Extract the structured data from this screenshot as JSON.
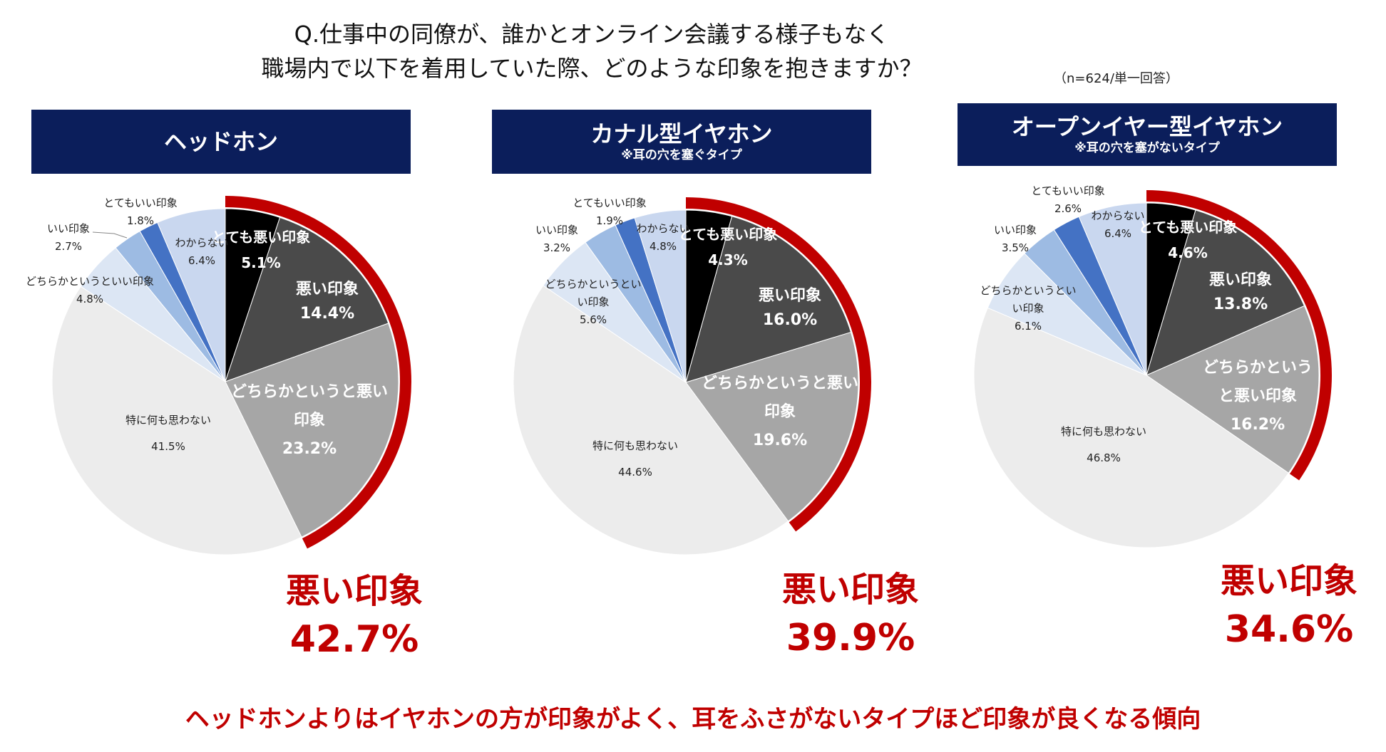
{
  "title": {
    "line1": "Q.仕事中の同僚が、誰かとオンライン会議する様子もなく",
    "line2": "職場内で以下を着用していた際、どのような印象を抱きますか？"
  },
  "note": "（n=624/単一回答）",
  "colors": {
    "header_bg": "#0b1e5b",
    "accent_red": "#c00000",
    "very_bad": "#000000",
    "bad": "#4a4a4a",
    "somewhat_bad": "#a6a6a6",
    "neutral": "#ececec",
    "somewhat_good": "#dce6f4",
    "good": "#9dbbe3",
    "very_good": "#4472c4",
    "dont_know": "#c9d7ef"
  },
  "footer": "ヘッドホンよりはイヤホンの方が印象がよく、耳をふさがないタイプほど印象が良くなる傾向",
  "chart_data": [
    {
      "type": "pie",
      "title": "ヘッドホン",
      "subtitle": "",
      "slices": [
        {
          "key": "very_bad",
          "label": "とても悪い印象",
          "value": 5.1
        },
        {
          "key": "bad",
          "label": "悪い印象",
          "value": 14.4
        },
        {
          "key": "somewhat_bad",
          "label": "どちらかというと悪い印象",
          "value": 23.2
        },
        {
          "key": "neutral",
          "label": "特に何も思わない",
          "value": 41.5
        },
        {
          "key": "somewhat_good",
          "label": "どちらかというといい印象",
          "value": 4.8
        },
        {
          "key": "good",
          "label": "いい印象",
          "value": 2.7
        },
        {
          "key": "very_good",
          "label": "とてもいい印象",
          "value": 1.8
        },
        {
          "key": "dont_know",
          "label": "わからない",
          "value": 6.4
        }
      ],
      "summary_label": "悪い印象",
      "summary_value": "42.7%"
    },
    {
      "type": "pie",
      "title": "カナル型イヤホン",
      "subtitle": "※耳の穴を塞ぐタイプ",
      "slices": [
        {
          "key": "very_bad",
          "label": "とても悪い印象",
          "value": 4.3
        },
        {
          "key": "bad",
          "label": "悪い印象",
          "value": 16.0
        },
        {
          "key": "somewhat_bad",
          "label": "どちらかというと悪い印象",
          "value": 19.6
        },
        {
          "key": "neutral",
          "label": "特に何も思わない",
          "value": 44.6
        },
        {
          "key": "somewhat_good",
          "label": "どちらかというといい印象",
          "value": 5.6
        },
        {
          "key": "good",
          "label": "いい印象",
          "value": 3.2
        },
        {
          "key": "very_good",
          "label": "とてもいい印象",
          "value": 1.9
        },
        {
          "key": "dont_know",
          "label": "わからない",
          "value": 4.8
        }
      ],
      "summary_label": "悪い印象",
      "summary_value": "39.9%"
    },
    {
      "type": "pie",
      "title": "オープンイヤー型イヤホン",
      "subtitle": "※耳の穴を塞がないタイプ",
      "slices": [
        {
          "key": "very_bad",
          "label": "とても悪い印象",
          "value": 4.6
        },
        {
          "key": "bad",
          "label": "悪い印象",
          "value": 13.8
        },
        {
          "key": "somewhat_bad",
          "label": "どちらかというと悪い印象",
          "value": 16.2
        },
        {
          "key": "neutral",
          "label": "特に何も思わない",
          "value": 46.8
        },
        {
          "key": "somewhat_good",
          "label": "どちらかというといい印象",
          "value": 6.1
        },
        {
          "key": "good",
          "label": "いい印象",
          "value": 3.5
        },
        {
          "key": "very_good",
          "label": "とてもいい印象",
          "value": 2.6
        },
        {
          "key": "dont_know",
          "label": "わからない",
          "value": 6.4
        }
      ],
      "summary_label": "悪い印象",
      "summary_value": "34.6%"
    }
  ]
}
